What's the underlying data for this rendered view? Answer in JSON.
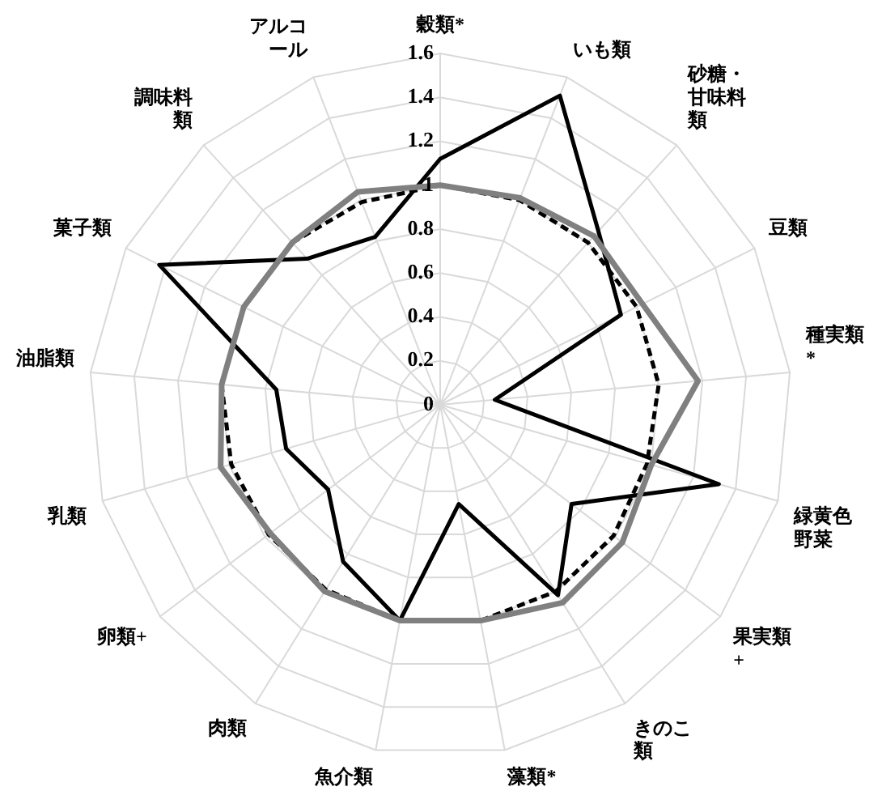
{
  "chart_data": {
    "type": "radar",
    "categories": [
      "穀類*",
      "いも類",
      "砂糖・甘味料類",
      "豆類",
      "種実類*",
      "緑黄色野菜",
      "果実類+",
      "きのこ類",
      "藻類*",
      "魚介類",
      "肉類",
      "卵類+",
      "乳類",
      "油脂類",
      "菓子類",
      "調味料類",
      "アルコール"
    ],
    "series": [
      {
        "color": "#808080",
        "values": [
          1.0,
          1.01,
          1.04,
          1.03,
          1.18,
          1.0,
          1.04,
          1.06,
          1.0,
          1.0,
          1.0,
          0.97,
          1.04,
          1.0,
          1.0,
          1.0,
          1.04
        ]
      },
      {
        "color": "#000000",
        "line_style": "dashed",
        "values": [
          1.0,
          1.0,
          1.0,
          1.0,
          1.0,
          0.98,
          0.99,
          1.0,
          1.0,
          1.0,
          0.99,
          0.98,
          0.99,
          1.0,
          1.0,
          1.0,
          0.99
        ]
      },
      {
        "color": "#000000",
        "values": [
          1.12,
          1.51,
          1.07,
          0.92,
          0.25,
          1.32,
          0.75,
          1.02,
          0.46,
          1.0,
          0.84,
          0.64,
          0.73,
          0.75,
          1.43,
          0.9,
          0.82
        ]
      }
    ],
    "ylim": [
      0,
      1.6
    ],
    "yticks": [
      0,
      0.2,
      0.4,
      0.6,
      0.8,
      1,
      1.2,
      1.4,
      1.6
    ],
    "grid": true,
    "legend": false,
    "marker": "none",
    "line_style": "solid"
  }
}
